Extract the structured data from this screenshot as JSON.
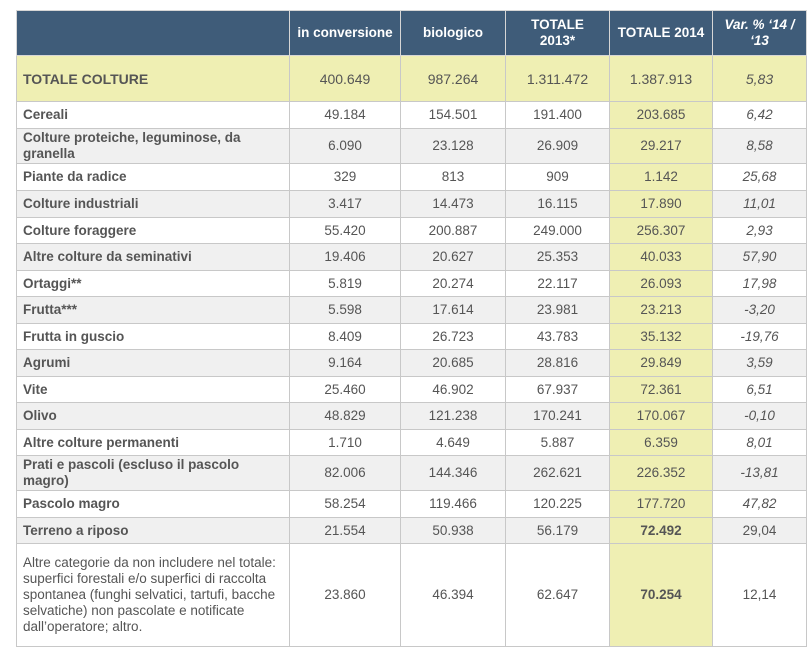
{
  "header": {
    "label": "",
    "columns": [
      "in conversione",
      "biologico",
      "TOTALE 2013*",
      "TOTALE 2014",
      "Var. % ‘14 / ‘13"
    ]
  },
  "rows": [
    {
      "label": "TOTALE COLTURE",
      "values": [
        "400.649",
        "987.264",
        "1.311.472",
        "1.387.913",
        "5,83"
      ]
    },
    {
      "label": "Cereali",
      "values": [
        "49.184",
        "154.501",
        "191.400",
        "203.685",
        "6,42"
      ]
    },
    {
      "label": "Colture proteiche, leguminose, da granella",
      "values": [
        "6.090",
        "23.128",
        "26.909",
        "29.217",
        "8,58"
      ]
    },
    {
      "label": "Piante da radice",
      "values": [
        "329",
        "813",
        "909",
        "1.142",
        "25,68"
      ]
    },
    {
      "label": "Colture industriali",
      "values": [
        "3.417",
        "14.473",
        "16.115",
        "17.890",
        "11,01"
      ]
    },
    {
      "label": "Colture foraggere",
      "values": [
        "55.420",
        "200.887",
        "249.000",
        "256.307",
        "2,93"
      ]
    },
    {
      "label": "Altre colture da seminativi",
      "values": [
        "19.406",
        "20.627",
        "25.353",
        "40.033",
        "57,90"
      ]
    },
    {
      "label": "Ortaggi**",
      "values": [
        "5.819",
        "20.274",
        "22.117",
        "26.093",
        "17,98"
      ]
    },
    {
      "label": "Frutta***",
      "values": [
        "5.598",
        "17.614",
        "23.981",
        "23.213",
        "-3,20"
      ]
    },
    {
      "label": "Frutta in guscio",
      "values": [
        "8.409",
        "26.723",
        "43.783",
        "35.132",
        "-19,76"
      ]
    },
    {
      "label": "Agrumi",
      "values": [
        "9.164",
        "20.685",
        "28.816",
        "29.849",
        "3,59"
      ]
    },
    {
      "label": "Vite",
      "values": [
        "25.460",
        "46.902",
        "67.937",
        "72.361",
        "6,51"
      ]
    },
    {
      "label": "Olivo",
      "values": [
        "48.829",
        "121.238",
        "170.241",
        "170.067",
        "-0,10"
      ]
    },
    {
      "label": "Altre colture permanenti",
      "values": [
        "1.710",
        "4.649",
        "5.887",
        "6.359",
        "8,01"
      ]
    },
    {
      "label": "Prati e pascoli (escluso il pascolo magro)",
      "values": [
        "82.006",
        "144.346",
        "262.621",
        "226.352",
        "-13,81"
      ]
    },
    {
      "label": "Pascolo magro",
      "values": [
        "58.254",
        "119.466",
        "120.225",
        "177.720",
        "47,82"
      ]
    },
    {
      "label": "Terreno a riposo",
      "values": [
        "21.554",
        "50.938",
        "56.179",
        "72.492",
        "29,04"
      ]
    },
    {
      "label": "Altre categorie da non includere nel totale: superfici forestali e/o superfici di raccolta spontanea (funghi selvatici, tartufi, bacche selvatiche) non pascolate e notificate dall’operatore; altro.",
      "values": [
        "23.860",
        "46.394",
        "62.647",
        "70.254",
        "12,14"
      ]
    }
  ],
  "colors": {
    "header": "#3f5c79",
    "highlight": "#efefb3",
    "stripe": "#f0f0f0"
  }
}
